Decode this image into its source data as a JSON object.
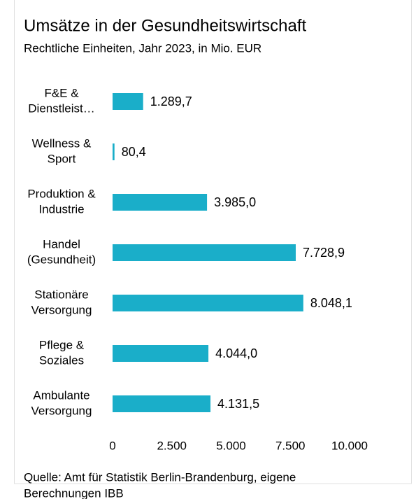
{
  "chart_data": {
    "type": "bar",
    "orientation": "horizontal",
    "title": "Umsätze in der Gesundheitswirtschaft",
    "subtitle": "Rechtliche Einheiten, Jahr 2023, in Mio. EUR",
    "categories": [
      [
        "F&E &",
        "Dienstleist…"
      ],
      [
        "Wellness &",
        "Sport"
      ],
      [
        "Produktion &",
        "Industrie"
      ],
      [
        "Handel",
        "(Gesundheit)"
      ],
      [
        "Stationäre",
        "Versorgung"
      ],
      [
        "Pflege &",
        "Soziales"
      ],
      [
        "Ambulante",
        "Versorgung"
      ]
    ],
    "values": [
      1289.7,
      80.4,
      3985.0,
      7728.9,
      8048.1,
      4044.0,
      4131.5
    ],
    "value_labels": [
      "1.289,7",
      "80,4",
      "3.985,0",
      "7.728,9",
      "8.048,1",
      "4.044,0",
      "4.131,5"
    ],
    "color": "#1aaec9",
    "xlim": [
      0,
      10000
    ],
    "xticks": [
      0,
      {
        "value": 2500,
        "label": "2.500"
      },
      {
        "value": 5000,
        "label": "5.000"
      },
      {
        "value": 7500,
        "label": "7.500"
      },
      {
        "value": 10000,
        "label": "10.000"
      }
    ],
    "grid": false,
    "source": [
      "Quelle: Amt für Statistik Berlin-Brandenburg, eigene",
      "Berechnungen IBB"
    ]
  }
}
